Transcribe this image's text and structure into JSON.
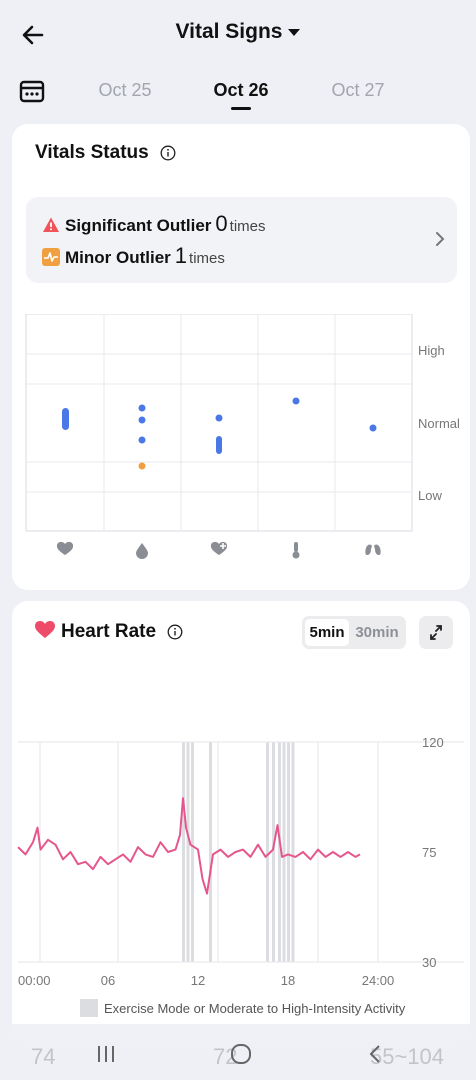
{
  "header": {
    "title": "Vital Signs"
  },
  "dates": {
    "prev": "Oct 25",
    "current": "Oct 26",
    "next": "Oct 27"
  },
  "vitals_status": {
    "title": "Vitals Status",
    "significant": {
      "label": "Significant Outlier",
      "count": "0",
      "unit": "times"
    },
    "minor": {
      "label": "Minor Outlier",
      "count": "1",
      "unit": "times"
    },
    "levels": [
      "High",
      "Normal",
      "Low"
    ],
    "metrics_icons": [
      "heart-icon",
      "blood-drop-icon",
      "heart-plus-icon",
      "thermometer-icon",
      "lungs-icon"
    ],
    "accent": "#4a78e6",
    "minor_color": "#f0a040",
    "significant_color": "#f0545a"
  },
  "heart_rate": {
    "title": "Heart Rate",
    "toggle": {
      "on": "5min",
      "off": "30min"
    },
    "legend": "Exercise Mode or Moderate to High-Intensity Activity",
    "line_color": "#e5578c"
  },
  "chart_data": {
    "type": "line",
    "x_ticks": [
      "00:00",
      "06",
      "12",
      "18",
      "24:00"
    ],
    "y_ticks": [
      "120",
      "75",
      "30"
    ],
    "ylim": [
      30,
      120
    ],
    "xlim": [
      0,
      24
    ],
    "series": [
      {
        "x": [
          0,
          0.5,
          1,
          1.3,
          1.5,
          2,
          2.5,
          3,
          3.5,
          4,
          4.5,
          5,
          5.5,
          6,
          6.5,
          7,
          7.5,
          8,
          8.5,
          9,
          9.5,
          10,
          10.5,
          10.8,
          11,
          11.2,
          11.5,
          12,
          12.3,
          12.6,
          13,
          13.5,
          14,
          14.5,
          15,
          15.5,
          16,
          16.5,
          17,
          17.3,
          17.6,
          18,
          18.5,
          19,
          19.5,
          20,
          20.5,
          21,
          21.5,
          22,
          22.5,
          22.8
        ],
        "y": [
          77,
          74,
          79,
          85,
          76,
          80,
          78,
          72,
          75,
          70,
          71,
          68,
          73,
          70,
          72,
          74,
          71,
          77,
          74,
          73,
          79,
          75,
          76,
          82,
          97,
          85,
          78,
          76,
          64,
          58,
          74,
          76,
          73,
          75,
          76,
          73,
          78,
          73,
          76,
          86,
          73,
          74,
          73,
          75,
          72,
          76,
          73,
          75,
          73,
          75,
          73,
          74
        ]
      }
    ],
    "exercise_bands_hours": [
      11.0,
      11.3,
      11.6,
      12.8,
      16.6,
      17.0,
      17.4,
      17.7,
      18.0,
      18.3
    ]
  },
  "bottom": {
    "left_value": "74",
    "mid_value": "72",
    "right_value": "55~104"
  }
}
